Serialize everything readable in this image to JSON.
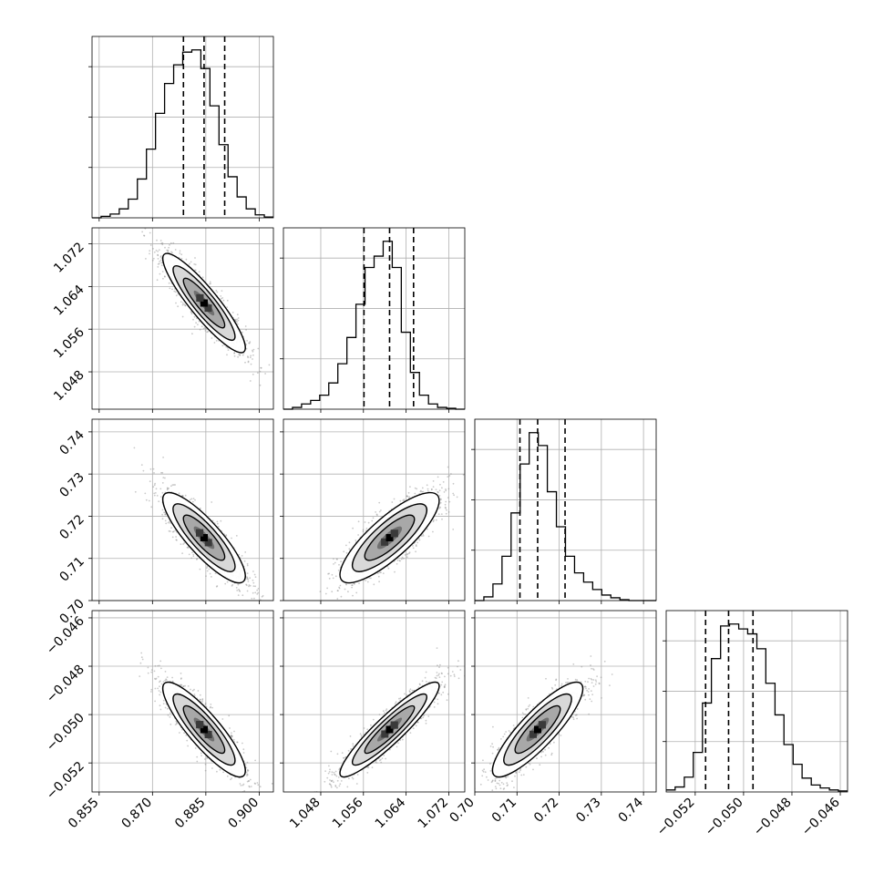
{
  "chart_data": {
    "type": "corner",
    "grid": true,
    "params": [
      {
        "range": [
          0.853,
          0.904
        ],
        "ticks": [
          0.855,
          0.87,
          0.885,
          0.9
        ],
        "tick_labels": [
          "0.855",
          "0.870",
          "0.885",
          "0.900"
        ],
        "quantiles": [
          0.8787,
          0.8845,
          0.8903
        ],
        "hist_edges": [
          0.853,
          0.85555,
          0.8581,
          0.86065,
          0.8632,
          0.86575,
          0.8683,
          0.87085,
          0.8734,
          0.87595,
          0.8785,
          0.88105,
          0.8836,
          0.88615,
          0.8887,
          0.89125,
          0.8938,
          0.89635,
          0.8989,
          0.90145,
          0.904
        ],
        "hist_counts": [
          0,
          2,
          5,
          12,
          25,
          52,
          92,
          140,
          180,
          205,
          222,
          225,
          200,
          150,
          98,
          55,
          28,
          12,
          4,
          1
        ]
      },
      {
        "range": [
          1.041,
          1.075
        ],
        "ticks": [
          1.048,
          1.056,
          1.064,
          1.072
        ],
        "tick_labels": [
          "1.048",
          "1.056",
          "1.064",
          "1.072"
        ],
        "quantiles": [
          1.0561,
          1.0609,
          1.0654
        ],
        "hist_edges": [
          1.041,
          1.0427,
          1.0444,
          1.0461,
          1.0478,
          1.0495,
          1.0512,
          1.0529,
          1.0546,
          1.0563,
          1.058,
          1.0597,
          1.0614,
          1.0631,
          1.0648,
          1.0665,
          1.0682,
          1.0699,
          1.0716,
          1.0733,
          1.075
        ],
        "hist_counts": [
          0,
          2,
          6,
          10,
          16,
          30,
          52,
          82,
          120,
          162,
          175,
          192,
          162,
          88,
          42,
          16,
          6,
          2,
          1,
          0
        ]
      },
      {
        "range": [
          0.7,
          0.743
        ],
        "ticks": [
          0.7,
          0.71,
          0.72,
          0.73,
          0.74
        ],
        "tick_labels": [
          "0.70",
          "0.71",
          "0.72",
          "0.73",
          "0.74"
        ],
        "quantiles": [
          0.7107,
          0.7149,
          0.7214
        ],
        "hist_edges": [
          0.7,
          0.70215,
          0.7043,
          0.70645,
          0.7086,
          0.71075,
          0.7129,
          0.71505,
          0.7172,
          0.71935,
          0.7215,
          0.72365,
          0.7258,
          0.72795,
          0.7301,
          0.73225,
          0.7344,
          0.73655,
          0.7387,
          0.74085,
          0.743
        ],
        "hist_counts": [
          0,
          4,
          18,
          48,
          95,
          148,
          182,
          168,
          118,
          80,
          48,
          30,
          20,
          12,
          6,
          3,
          1,
          0,
          0,
          0
        ]
      },
      {
        "range": [
          -0.0532,
          -0.0457
        ],
        "ticks": [
          -0.052,
          -0.05,
          -0.048,
          -0.046
        ],
        "tick_labels": [
          "−0.052",
          "−0.050",
          "−0.048",
          "−0.046"
        ],
        "quantiles": [
          -0.05157,
          -0.05062,
          -0.04961
        ],
        "hist_edges": [
          -0.0532,
          -0.05283,
          -0.05245,
          -0.05208,
          -0.0517,
          -0.05133,
          -0.05095,
          -0.05058,
          -0.0502,
          -0.04983,
          -0.04945,
          -0.04908,
          -0.0487,
          -0.04833,
          -0.04795,
          -0.04758,
          -0.0472,
          -0.04683,
          -0.04645,
          -0.04608,
          -0.0457
        ],
        "hist_counts": [
          2,
          5,
          15,
          40,
          90,
          135,
          168,
          170,
          165,
          160,
          145,
          110,
          78,
          48,
          28,
          14,
          7,
          4,
          2,
          1
        ]
      }
    ],
    "correlations": [
      [
        1,
        -0.9,
        -0.85,
        -0.87
      ],
      [
        -0.9,
        1,
        0.82,
        0.92
      ],
      [
        -0.85,
        0.82,
        1,
        0.86
      ],
      [
        -0.87,
        0.92,
        0.86,
        1
      ]
    ]
  }
}
